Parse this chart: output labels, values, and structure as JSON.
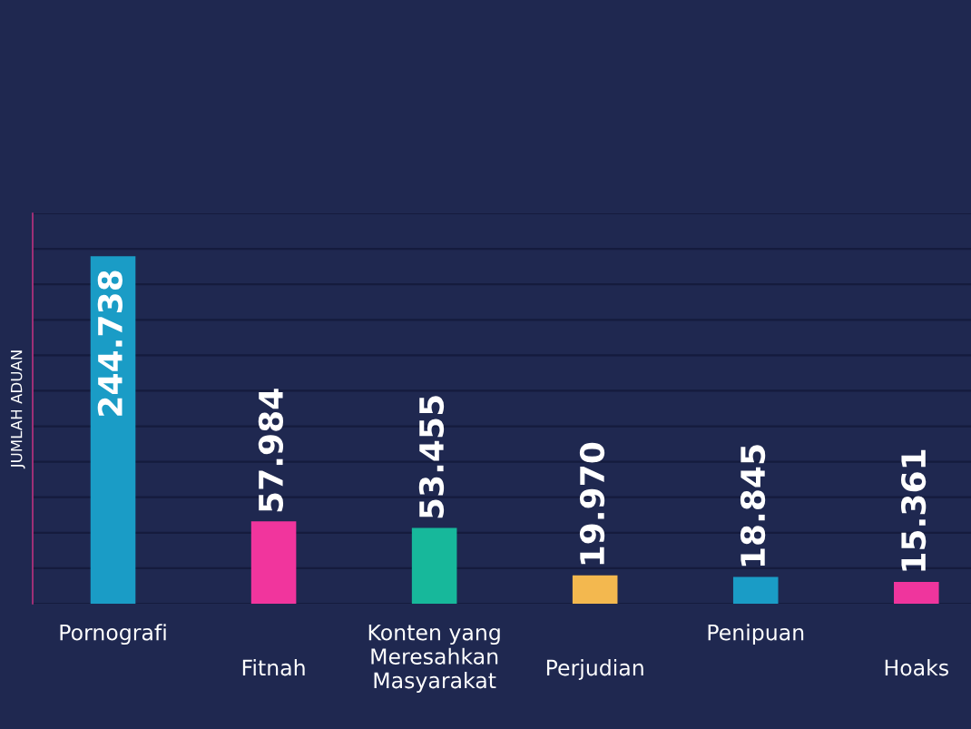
{
  "chart_data": {
    "type": "bar",
    "ylabel": "JUMLAH ADUAN",
    "categories": [
      "Pornografi",
      "Fitnah",
      "Konten yang\nMeresahkan\nMasyarakat",
      "Perjudian",
      "Penipuan",
      "Hoaks"
    ],
    "values": [
      244738,
      57984,
      53455,
      19970,
      18845,
      15361
    ],
    "colors": [
      "#1a9cc6",
      "#f1359d",
      "#17b89b",
      "#f3b84f",
      "#1a9cc6",
      "#ef359d"
    ],
    "value_labels": [
      "244.738",
      "57.984",
      "53.455",
      "19.970",
      "18.845",
      "15.361"
    ],
    "ylim": [
      0,
      275000
    ],
    "yticks": [
      {
        "value": 0,
        "label": null
      },
      {
        "value": 25000,
        "label": null
      },
      {
        "value": 50000,
        "label": null
      },
      {
        "value": 75000,
        "label": null
      },
      {
        "value": 100000,
        "label": null
      },
      {
        "value": 125000,
        "label": null
      },
      {
        "value": 150000,
        "label": null
      },
      {
        "value": 175000,
        "label": null
      },
      {
        "value": 200000,
        "label": null
      },
      {
        "value": 225000,
        "label": null
      },
      {
        "value": 250000,
        "label": null
      },
      {
        "value": 275000,
        "label": null
      }
    ],
    "grid": "y",
    "tick_labels": "x"
  }
}
